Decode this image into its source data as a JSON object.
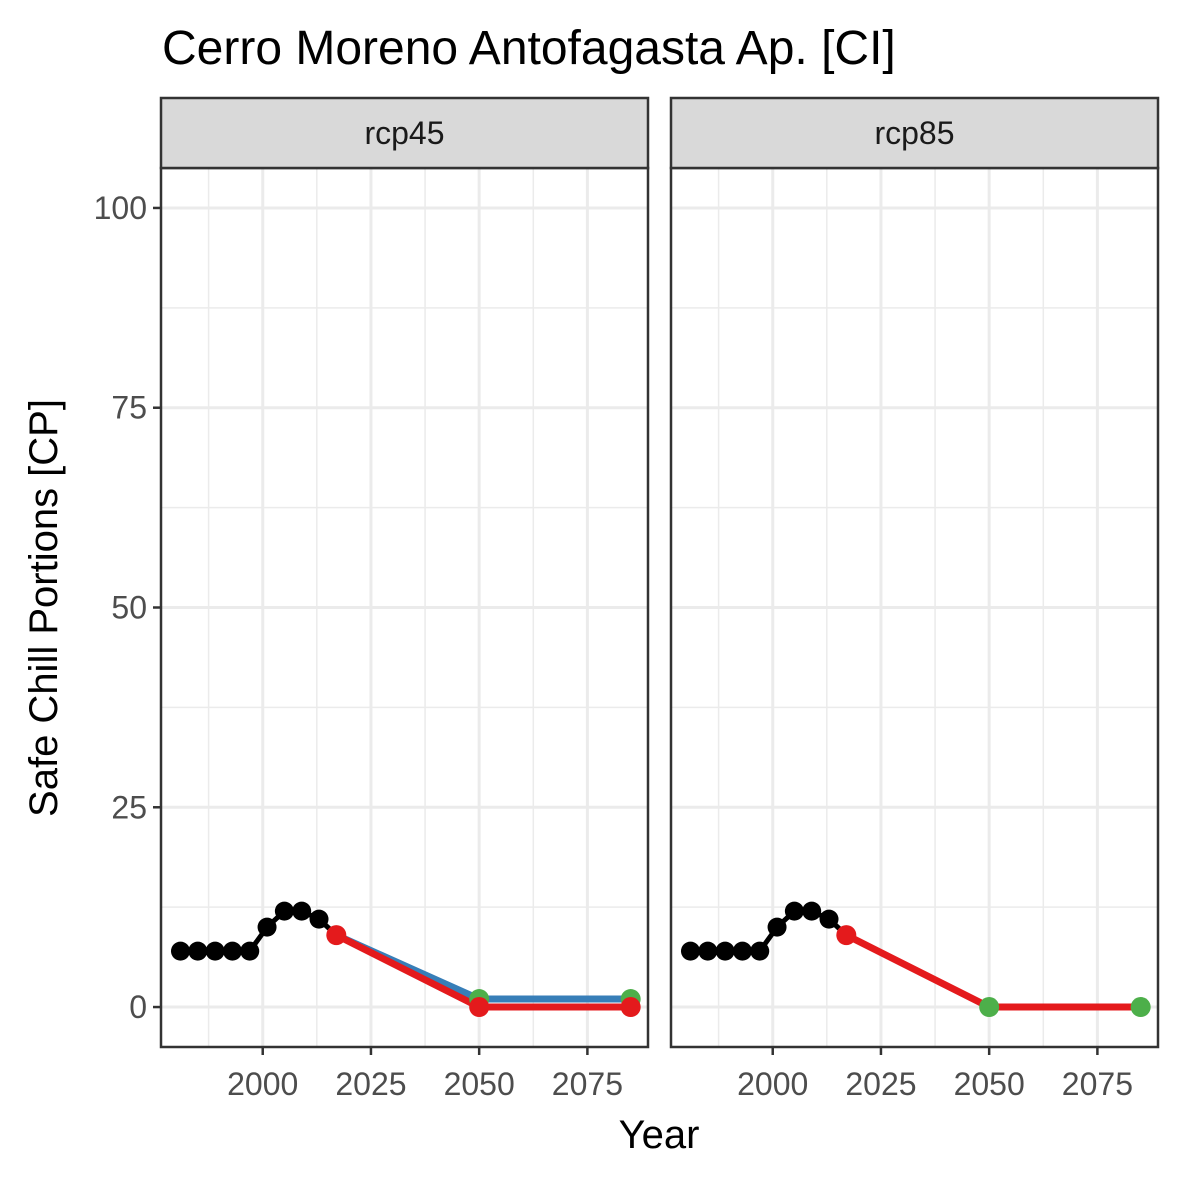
{
  "chart_data": {
    "type": "line",
    "title": "Cerro Moreno Antofagasta Ap. [CI]",
    "xlabel": "Year",
    "ylabel": "Safe Chill Portions [CP]",
    "xlim": [
      1976.5,
      2089
    ],
    "ylim": [
      -5,
      105
    ],
    "x_ticks": [
      2000,
      2025,
      2050,
      2075
    ],
    "y_ticks": [
      0,
      25,
      50,
      75,
      100
    ],
    "grid": true,
    "legend": "none",
    "colors": {
      "historic": "#000000",
      "blue": "#377eb8",
      "red": "#e41a1c",
      "green": "#4daf4a",
      "strip_fill": "#d9d9d9",
      "grid": "#ebebeb",
      "panel_border": "#333333"
    },
    "historic": {
      "x": [
        1981,
        1985,
        1989,
        1993,
        1997,
        2001,
        2005,
        2009,
        2013
      ],
      "y": [
        7,
        7,
        7,
        7,
        7,
        10,
        12,
        12,
        11
      ]
    },
    "panels": [
      {
        "strip": "rcp45",
        "series": [
          {
            "color": "blue",
            "x": [
              2017,
              2050,
              2085
            ],
            "y": [
              9,
              1,
              1
            ]
          },
          {
            "color": "red",
            "x": [
              2017,
              2050,
              2085
            ],
            "y": [
              9,
              0,
              0
            ]
          }
        ],
        "points": [
          {
            "color": "red",
            "x": 2017,
            "y": 9
          },
          {
            "color": "green",
            "x": 2050,
            "y": 1
          },
          {
            "color": "green",
            "x": 2085,
            "y": 1
          },
          {
            "color": "red",
            "x": 2050,
            "y": 0
          },
          {
            "color": "red",
            "x": 2085,
            "y": 0
          }
        ]
      },
      {
        "strip": "rcp85",
        "series": [
          {
            "color": "red",
            "x": [
              2017,
              2050,
              2085
            ],
            "y": [
              9,
              0,
              0
            ]
          }
        ],
        "points": [
          {
            "color": "red",
            "x": 2017,
            "y": 9
          },
          {
            "color": "green",
            "x": 2050,
            "y": 0
          },
          {
            "color": "green",
            "x": 2085,
            "y": 0
          }
        ]
      }
    ]
  }
}
